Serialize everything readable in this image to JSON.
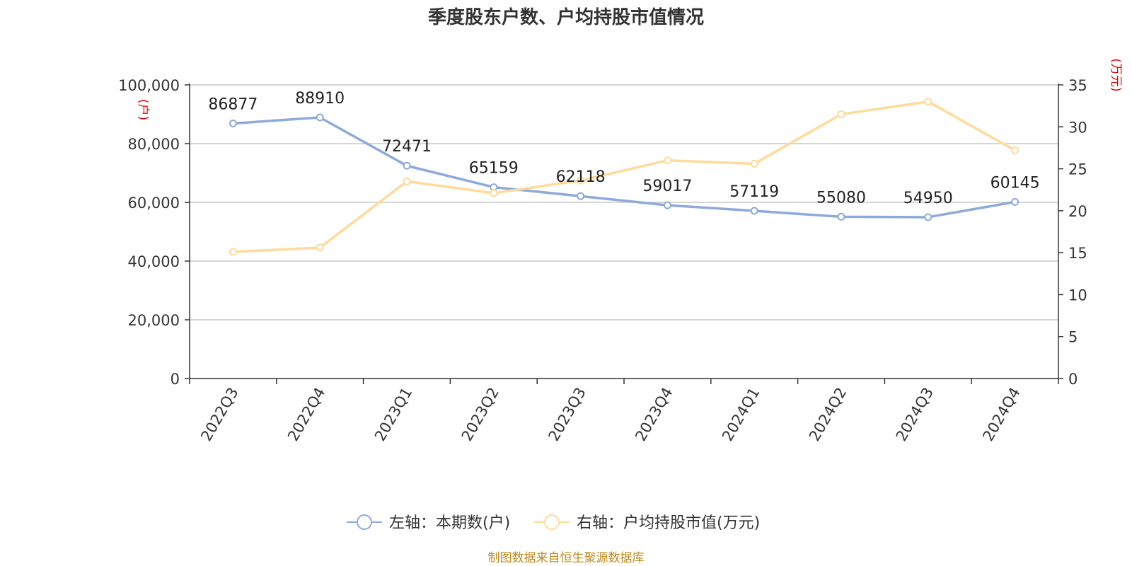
{
  "chart_data": {
    "type": "line",
    "title": "季度股东户数、户均持股市值情况",
    "categories": [
      "2022Q3",
      "2022Q4",
      "2023Q1",
      "2023Q2",
      "2023Q3",
      "2023Q4",
      "2024Q1",
      "2024Q2",
      "2024Q3",
      "2024Q4"
    ],
    "series": [
      {
        "name": "左轴：本期数(户)",
        "axis": "left",
        "color": "#8eaadb",
        "values": [
          86877,
          88910,
          72471,
          65159,
          62118,
          59017,
          57119,
          55080,
          54950,
          60145
        ],
        "labels": [
          "86877",
          "88910",
          "72471",
          "65159",
          "62118",
          "59017",
          "57119",
          "55080",
          "54950",
          "60145"
        ]
      },
      {
        "name": "右轴：户均持股市值(万元)",
        "axis": "right",
        "color": "#ffdb99",
        "values": [
          15.1,
          15.6,
          23.5,
          22.1,
          23.6,
          26.0,
          25.6,
          31.5,
          33.0,
          27.2
        ]
      }
    ],
    "left_axis": {
      "unit": "(户)",
      "ylim": [
        0,
        100000
      ],
      "ticks": [
        "0",
        "20,000",
        "40,000",
        "60,000",
        "80,000",
        "100,000"
      ]
    },
    "right_axis": {
      "unit": "(万元)",
      "ylim": [
        0,
        35
      ],
      "ticks": [
        "0",
        "5",
        "10",
        "15",
        "20",
        "25",
        "30",
        "35"
      ]
    },
    "grid": true,
    "legend_position": "bottom"
  },
  "source": "制图数据来自恒生聚源数据库"
}
